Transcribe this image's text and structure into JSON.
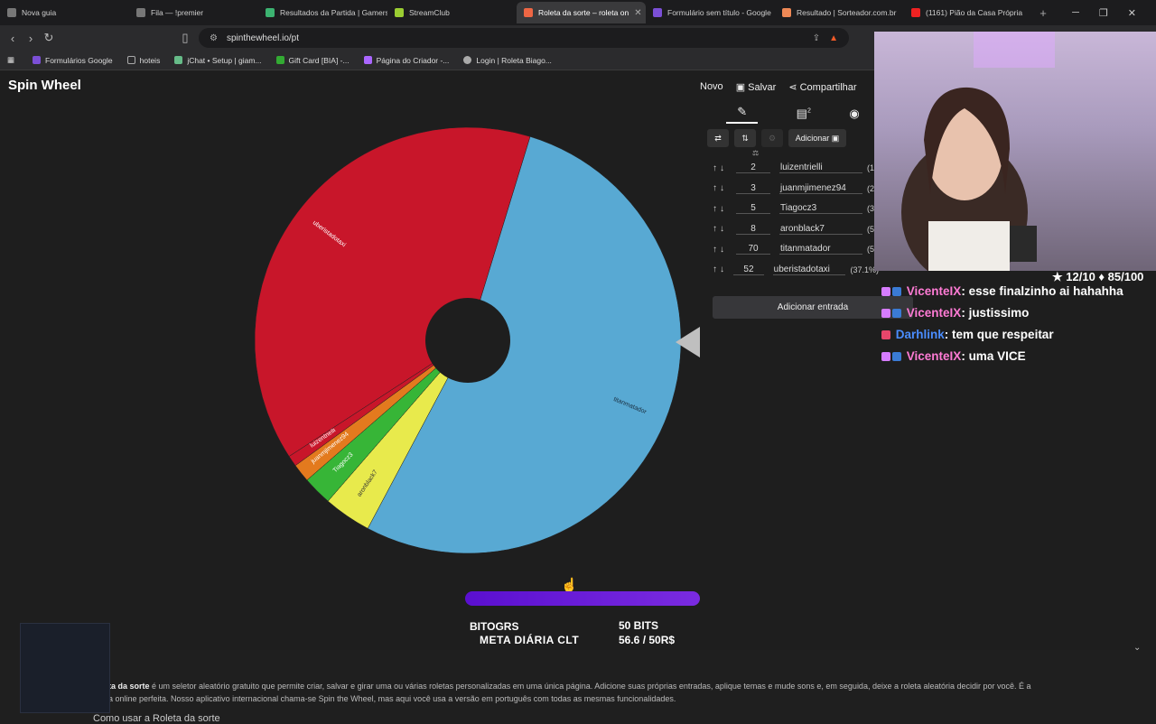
{
  "tabs": [
    {
      "label": "Nova guia",
      "active": false
    },
    {
      "label": "Fila — !premier",
      "active": false
    },
    {
      "label": "Resultados da Partida | Gamers",
      "active": false
    },
    {
      "label": "StreamClub",
      "active": false
    },
    {
      "label": "Roleta da sorte – roleta on",
      "active": true
    },
    {
      "label": "Formulário sem título - Google",
      "active": false
    },
    {
      "label": "Resultado | Sorteador.com.br",
      "active": false
    },
    {
      "label": "(1161) Pião da Casa Própria",
      "active": false
    }
  ],
  "address": "spinthewheel.io/pt",
  "bookmarks": [
    "Formulários Google",
    "hoteis",
    "jChat • Setup | giam...",
    "Gift Card [BIA] -...",
    "Página do Criador -...",
    "Login | Roleta Biago..."
  ],
  "app": {
    "logo": "Spin Wheel",
    "menu": {
      "new": "Novo",
      "save": "Salvar",
      "share": "Compartilhar"
    }
  },
  "panel": {
    "add_image_label": "Adicionar",
    "add_entry_label": "Adicionar entrada",
    "badge_count": "2",
    "entries": [
      {
        "name": "luizentrielli",
        "weight": "2",
        "pct": "(1."
      },
      {
        "name": "juanmjimenez94",
        "weight": "3",
        "pct": "(2."
      },
      {
        "name": "Tiagocz3",
        "weight": "5",
        "pct": "(3."
      },
      {
        "name": "aronblack7",
        "weight": "8",
        "pct": "(5."
      },
      {
        "name": "titanmatador",
        "weight": "70",
        "pct": "(5"
      },
      {
        "name": "uberistadotaxi",
        "weight": "52",
        "pct": "(37.1%)"
      }
    ]
  },
  "wheel": {
    "colors": {
      "red": "#c8162a",
      "blue": "#58a9d3",
      "orange": "#e37a1e",
      "green": "#37b537",
      "yellow": "#e8ea4c",
      "hub": "#1e1e1e"
    },
    "slice_labels": [
      "uberistadotaxi",
      "titanmatador",
      "aronblack7",
      "Tiagocz3",
      "juanmjimenez94",
      "luizentrielli"
    ]
  },
  "stream": {
    "stats": "★ 12/10  ♦ 85/100",
    "chat": [
      {
        "user": "VicenteIX",
        "text": "esse finalzinho ai hahahha",
        "color": "pink"
      },
      {
        "user": "VicenteIX",
        "text": "justissimo",
        "color": "pink"
      },
      {
        "user": "Darhlink",
        "text": "tem que respeitar",
        "color": "blue"
      },
      {
        "user": "VicenteIX",
        "text": "uma VICE",
        "color": "pink"
      }
    ],
    "goal_label": "META DIÁRIA CLT",
    "goal_value": "56.6 / 50R$",
    "goal_progress": 1.0,
    "bits_user": "BITOGRS",
    "bits_amount": "50 BITS"
  },
  "description": {
    "bold": "ta da sorte",
    "line1": " é um seletor aleatório gratuito que permite criar, salvar e girar uma ou várias roletas personalizadas em uma única página. Adicione suas próprias entradas, aplique temas e mude sons e, em seguida, deixe a roleta aleatória decidir por você. É a",
    "line2": "a online perfeita. Nosso aplicativo internacional chama-se Spin the Wheel, mas aqui você usa a versão em português com todas as mesmas funcionalidades.",
    "howto": "Como usar a Roleta da sorte"
  }
}
